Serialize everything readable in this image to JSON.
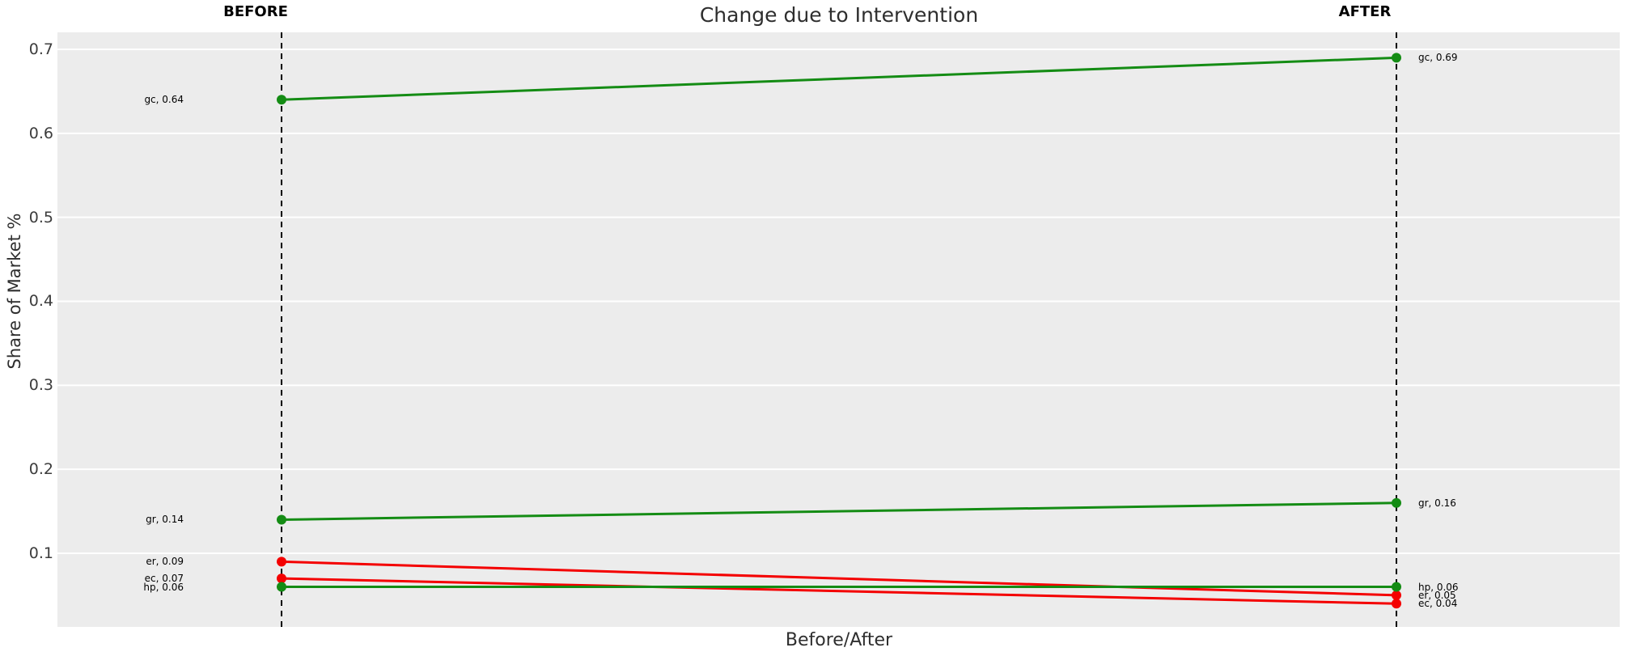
{
  "title": "Change due to Intervention",
  "headers": {
    "before": "BEFORE",
    "after": "AFTER"
  },
  "palette": {
    "increase": "#148c14",
    "decrease": "#f40000",
    "plot_bg": "#ececec",
    "gridline": "#ffffff",
    "guide_line": "#000000",
    "label_text": "#000000"
  },
  "chart_data": {
    "type": "line",
    "variant": "slopegraph",
    "title": "Change due to Intervention",
    "xlabel": "Before/After",
    "ylabel": "Share of Market %",
    "categories": [
      "BEFORE",
      "AFTER"
    ],
    "y_ticks": [
      "0.7",
      "0.6",
      "0.5",
      "0.4",
      "0.3",
      "0.2",
      "0.1"
    ],
    "ylim": [
      0.012,
      0.722
    ],
    "grid": "on",
    "legend": "none",
    "series": [
      {
        "name": "gc",
        "values": [
          0.64,
          0.69
        ],
        "direction": "increase",
        "labels": [
          "gc, 0.64",
          "gc, 0.69"
        ]
      },
      {
        "name": "gr",
        "values": [
          0.14,
          0.16
        ],
        "direction": "increase",
        "labels": [
          "gr, 0.14",
          "gr, 0.16"
        ]
      },
      {
        "name": "er",
        "values": [
          0.09,
          0.05
        ],
        "direction": "decrease",
        "labels": [
          "er, 0.09",
          "er, 0.05"
        ]
      },
      {
        "name": "ec",
        "values": [
          0.07,
          0.04
        ],
        "direction": "decrease",
        "labels": [
          "ec, 0.07",
          "ec, 0.04"
        ]
      },
      {
        "name": "hp",
        "values": [
          0.06,
          0.06
        ],
        "direction": "increase",
        "labels": [
          "hp, 0.06",
          "hp, 0.06"
        ]
      }
    ]
  }
}
